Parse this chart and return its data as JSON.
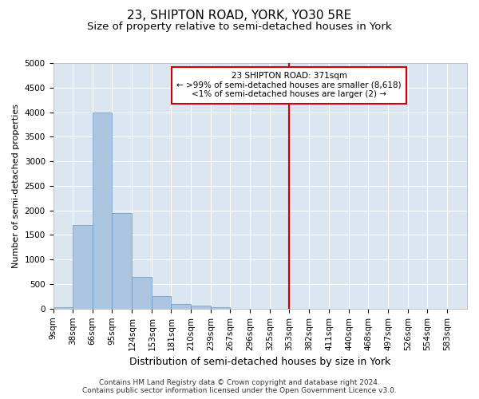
{
  "title": "23, SHIPTON ROAD, YORK, YO30 5RE",
  "subtitle": "Size of property relative to semi-detached houses in York",
  "xlabel": "Distribution of semi-detached houses by size in York",
  "ylabel": "Number of semi-detached properties",
  "footer_line1": "Contains HM Land Registry data © Crown copyright and database right 2024.",
  "footer_line2": "Contains public sector information licensed under the Open Government Licence v3.0.",
  "bin_labels": [
    "9sqm",
    "38sqm",
    "66sqm",
    "95sqm",
    "124sqm",
    "153sqm",
    "181sqm",
    "210sqm",
    "239sqm",
    "267sqm",
    "296sqm",
    "325sqm",
    "353sqm",
    "382sqm",
    "411sqm",
    "440sqm",
    "468sqm",
    "497sqm",
    "526sqm",
    "554sqm",
    "583sqm"
  ],
  "bar_values": [
    30,
    1700,
    4000,
    1950,
    650,
    250,
    100,
    60,
    30,
    5,
    2,
    1,
    0,
    0,
    0,
    0,
    0,
    0,
    0,
    0,
    0
  ],
  "bin_edges": [
    9,
    38,
    66,
    95,
    124,
    153,
    181,
    210,
    239,
    267,
    296,
    325,
    353,
    382,
    411,
    440,
    468,
    497,
    526,
    554,
    583
  ],
  "bar_color": "#adc6e0",
  "bar_edge_color": "#6699cc",
  "background_color": "#dce6f1",
  "grid_color": "#ffffff",
  "red_line_x": 353,
  "annotation_text_line1": "23 SHIPTON ROAD: 371sqm",
  "annotation_text_line2": "← >99% of semi-detached houses are smaller (8,618)",
  "annotation_text_line3": "<1% of semi-detached houses are larger (2) →",
  "annotation_box_color": "#ffffff",
  "annotation_box_edge_color": "#cc0000",
  "ylim": [
    0,
    5000
  ],
  "yticks": [
    0,
    500,
    1000,
    1500,
    2000,
    2500,
    3000,
    3500,
    4000,
    4500,
    5000
  ],
  "title_fontsize": 11,
  "subtitle_fontsize": 9.5,
  "xlabel_fontsize": 9,
  "ylabel_fontsize": 8,
  "tick_fontsize": 7.5,
  "annotation_fontsize": 7.5,
  "footer_fontsize": 6.5
}
